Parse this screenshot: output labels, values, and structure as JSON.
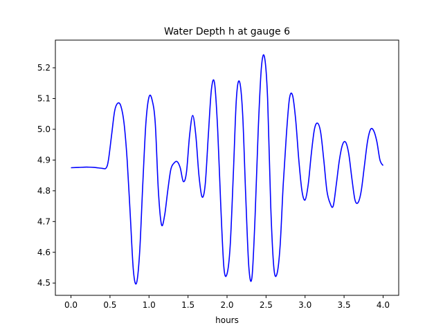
{
  "chart_data": {
    "type": "line",
    "title": "Water Depth h at gauge 6",
    "xlabel": "hours",
    "ylabel": "",
    "xlim": [
      -0.2,
      4.2
    ],
    "ylim": [
      4.46,
      5.29
    ],
    "xticks": [
      0.0,
      0.5,
      1.0,
      1.5,
      2.0,
      2.5,
      3.0,
      3.5,
      4.0
    ],
    "xtick_labels": [
      "0.0",
      "0.5",
      "1.0",
      "1.5",
      "2.0",
      "2.5",
      "3.0",
      "3.5",
      "4.0"
    ],
    "yticks": [
      4.5,
      4.6,
      4.7,
      4.8,
      4.9,
      5.0,
      5.1,
      5.2
    ],
    "ytick_labels": [
      "4.5",
      "4.6",
      "4.7",
      "4.8",
      "4.9",
      "5.0",
      "5.1",
      "5.2"
    ],
    "grid": false,
    "series": [
      {
        "name": "",
        "color": "#0000ff",
        "x": [
          0.0,
          0.1,
          0.2,
          0.3,
          0.4,
          0.45,
          0.48,
          0.52,
          0.56,
          0.6,
          0.64,
          0.68,
          0.72,
          0.76,
          0.8,
          0.84,
          0.88,
          0.92,
          0.96,
          1.0,
          1.04,
          1.08,
          1.12,
          1.16,
          1.2,
          1.24,
          1.28,
          1.32,
          1.36,
          1.4,
          1.44,
          1.48,
          1.52,
          1.56,
          1.6,
          1.64,
          1.68,
          1.72,
          1.76,
          1.8,
          1.84,
          1.88,
          1.92,
          1.96,
          2.0,
          2.04,
          2.08,
          2.12,
          2.16,
          2.2,
          2.24,
          2.28,
          2.32,
          2.36,
          2.4,
          2.44,
          2.48,
          2.52,
          2.56,
          2.6,
          2.64,
          2.68,
          2.72,
          2.76,
          2.8,
          2.84,
          2.88,
          2.92,
          2.96,
          3.0,
          3.04,
          3.08,
          3.12,
          3.16,
          3.2,
          3.24,
          3.28,
          3.32,
          3.36,
          3.4,
          3.44,
          3.48,
          3.52,
          3.56,
          3.6,
          3.64,
          3.68,
          3.72,
          3.76,
          3.8,
          3.84,
          3.88,
          3.92,
          3.96,
          4.0
        ],
        "values": [
          4.875,
          4.876,
          4.877,
          4.876,
          4.873,
          4.874,
          4.9,
          4.98,
          5.06,
          5.085,
          5.075,
          5.02,
          4.9,
          4.72,
          4.54,
          4.5,
          4.6,
          4.82,
          5.02,
          5.105,
          5.095,
          5.02,
          4.8,
          4.69,
          4.72,
          4.8,
          4.87,
          4.89,
          4.895,
          4.875,
          4.83,
          4.86,
          4.98,
          5.045,
          4.98,
          4.85,
          4.78,
          4.82,
          4.98,
          5.13,
          5.15,
          5.0,
          4.75,
          4.55,
          4.53,
          4.62,
          4.85,
          5.1,
          5.155,
          5.05,
          4.78,
          4.55,
          4.52,
          4.72,
          5.0,
          5.2,
          5.235,
          5.1,
          4.75,
          4.55,
          4.53,
          4.62,
          4.82,
          4.98,
          5.1,
          5.11,
          5.03,
          4.9,
          4.8,
          4.77,
          4.82,
          4.92,
          5.0,
          5.02,
          4.99,
          4.9,
          4.8,
          4.76,
          4.75,
          4.82,
          4.9,
          4.95,
          4.958,
          4.92,
          4.84,
          4.77,
          4.762,
          4.8,
          4.88,
          4.96,
          5.0,
          4.995,
          4.96,
          4.9,
          4.882
        ]
      }
    ]
  }
}
